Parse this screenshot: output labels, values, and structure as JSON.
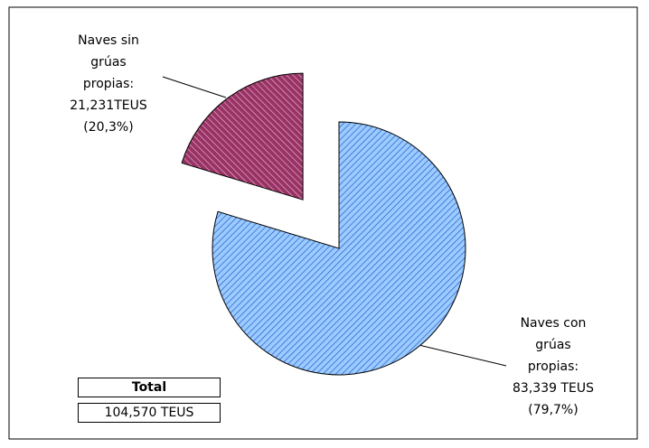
{
  "chart_data": {
    "type": "pie",
    "categories": [
      "Naves con grúas propias:",
      "Naves sin grúas propias:"
    ],
    "values": [
      83339,
      21231
    ],
    "value_labels": [
      "83,339 TEUS",
      "21,231TEUS"
    ],
    "percent_labels": [
      "(79,7%)",
      "(20,3%)"
    ],
    "colors": [
      "#99ccff",
      "#993366"
    ],
    "total_title": "Total",
    "total_text": "104,570 TEUS"
  }
}
